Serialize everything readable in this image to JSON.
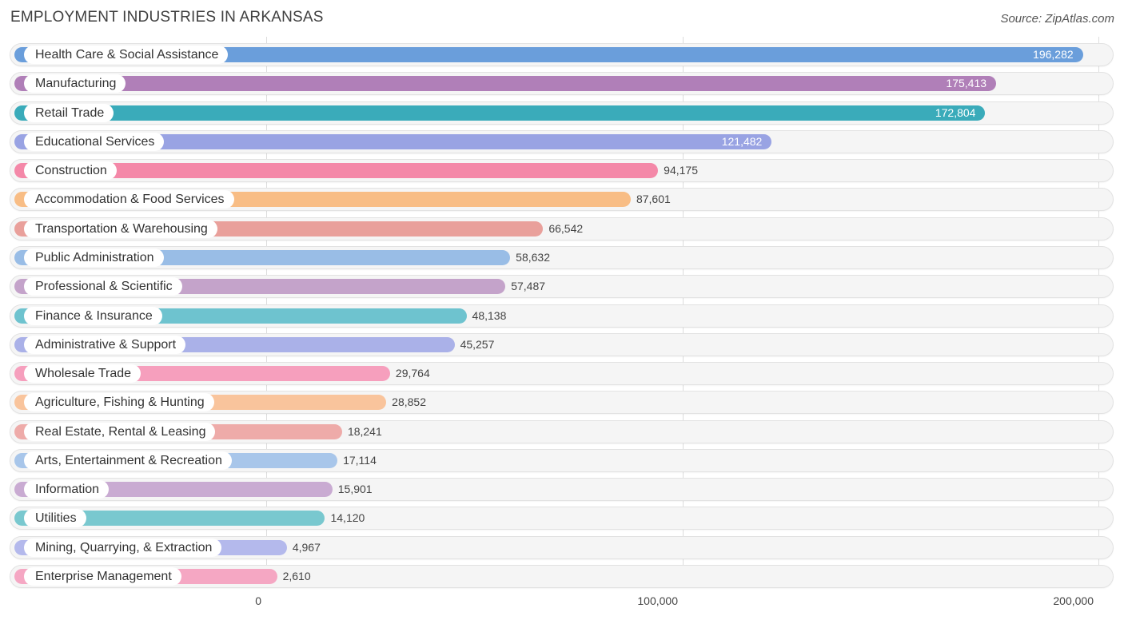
{
  "chart_data": {
    "type": "bar",
    "orientation": "horizontal",
    "title": "EMPLOYMENT INDUSTRIES IN ARKANSAS",
    "source": "Source: ZipAtlas.com",
    "xlim": [
      0,
      200000
    ],
    "ticks": [
      {
        "value": 0,
        "label": "0"
      },
      {
        "value": 100000,
        "label": "100,000"
      },
      {
        "value": 200000,
        "label": "200,000"
      }
    ],
    "categories": [
      "Health Care & Social Assistance",
      "Manufacturing",
      "Retail Trade",
      "Educational Services",
      "Construction",
      "Accommodation & Food Services",
      "Transportation & Warehousing",
      "Public Administration",
      "Professional & Scientific",
      "Finance & Insurance",
      "Administrative & Support",
      "Wholesale Trade",
      "Agriculture, Fishing & Hunting",
      "Real Estate, Rental & Leasing",
      "Arts, Entertainment & Recreation",
      "Information",
      "Utilities",
      "Mining, Quarrying, & Extraction",
      "Enterprise Management"
    ],
    "values": [
      196282,
      175413,
      172804,
      121482,
      94175,
      87601,
      66542,
      58632,
      57487,
      48138,
      45257,
      29764,
      28852,
      18241,
      17114,
      15901,
      14120,
      4967,
      2610
    ],
    "value_labels": [
      "196,282",
      "175,413",
      "172,804",
      "121,482",
      "94,175",
      "87,601",
      "66,542",
      "58,632",
      "57,487",
      "48,138",
      "45,257",
      "29,764",
      "28,852",
      "18,241",
      "17,114",
      "15,901",
      "14,120",
      "4,967",
      "2,610"
    ],
    "colors": [
      "#6a9edb",
      "#b07fb8",
      "#3aabba",
      "#99a3e3",
      "#f488a8",
      "#f8bd85",
      "#e9a09b",
      "#99bde6",
      "#c4a3ca",
      "#6ec3cf",
      "#aab1e8",
      "#f69fbd",
      "#f9c49c",
      "#eeaba9",
      "#a8c6ea",
      "#c9abd2",
      "#79c8cf",
      "#b4b9ec",
      "#f5a7c3"
    ]
  }
}
